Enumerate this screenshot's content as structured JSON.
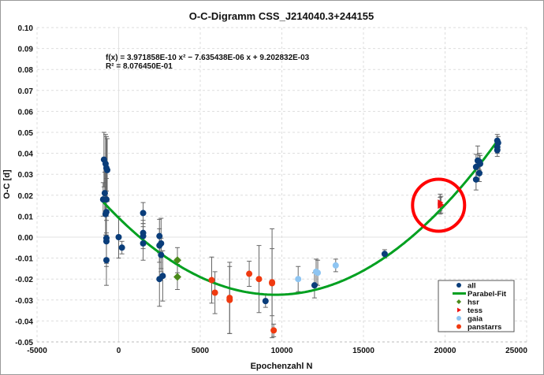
{
  "chart_data": {
    "type": "scatter",
    "title": "O-C-Digramm CSS_J214040.3+244155",
    "xlabel": "Epochenzahl N",
    "ylabel": "O-C [d]",
    "xlim": [
      -5000,
      25000
    ],
    "ylim": [
      -0.05,
      0.1
    ],
    "xticks": [
      "-5000",
      "0",
      "5000",
      "10000",
      "15000",
      "20000",
      "25000"
    ],
    "yticks": [
      "-0.05",
      "-0.04",
      "-0.03",
      "-0.02",
      "-0.01",
      "0.00",
      "0.01",
      "0.02",
      "0.03",
      "0.04",
      "0.05",
      "0.06",
      "0.07",
      "0.08",
      "0.09",
      "0.10"
    ],
    "grid": true,
    "legend_position": "bottom-right",
    "fit": {
      "name": "Parabel-Fit",
      "color": "#00a020",
      "coefficients": [
        3.971858e-10,
        -7.635438e-06,
        0.009202832
      ],
      "equation_text": "f(x)  = 3.971858E-10 x² − 7.635438E-06 x + 9.202832E-03",
      "r2_text": "R² = 8.076450E-01"
    },
    "annotation": {
      "shape": "circle",
      "color": "#ff0000",
      "center": [
        19700,
        0.016
      ]
    },
    "series": [
      {
        "name": "all",
        "color": "#0a3d7a",
        "marker": "circle",
        "points": [
          [
            -900,
            0.037,
            0.013
          ],
          [
            -800,
            0.035,
            0.014
          ],
          [
            -750,
            0.033,
            0.015
          ],
          [
            -700,
            0.032,
            0.015
          ],
          [
            -850,
            0.021,
            0.01
          ],
          [
            -950,
            0.018,
            0.008
          ],
          [
            -750,
            0.018,
            0.01
          ],
          [
            -750,
            0.012,
            0.01
          ],
          [
            -800,
            0.011,
            0.01
          ],
          [
            -750,
            -0.0005,
            0.012
          ],
          [
            -750,
            -0.002,
            0.012
          ],
          [
            -750,
            -0.011,
            0.012
          ],
          [
            0,
            0.0,
            0.01
          ],
          [
            200,
            -0.005,
            0.003
          ],
          [
            1500,
            0.0115,
            0.005
          ],
          [
            1500,
            0.002,
            0.006
          ],
          [
            1500,
            0.0005,
            0.006
          ],
          [
            1500,
            -0.003,
            0.008
          ],
          [
            2500,
            0.0005,
            0.008
          ],
          [
            2500,
            -0.004,
            0.008
          ],
          [
            2600,
            -0.003,
            0.012
          ],
          [
            2600,
            -0.0085,
            0.008
          ],
          [
            2500,
            -0.02,
            0.013
          ],
          [
            2700,
            -0.0185,
            0.012
          ],
          [
            9000,
            -0.0305,
            0.003
          ],
          [
            12000,
            -0.023,
            0.006
          ],
          [
            16300,
            -0.008,
            0.002
          ],
          [
            22000,
            0.0365,
            0.007
          ],
          [
            21900,
            0.0335,
            0.006
          ],
          [
            22100,
            0.036,
            0.004
          ],
          [
            22150,
            0.035,
            0.004
          ],
          [
            21900,
            0.0275,
            0.005
          ],
          [
            22100,
            0.0305,
            0.004
          ],
          [
            23200,
            0.046,
            0.003
          ],
          [
            23250,
            0.045,
            0.003
          ],
          [
            23200,
            0.043,
            0.003
          ],
          [
            23200,
            0.0415,
            0.003
          ]
        ]
      },
      {
        "name": "hsr",
        "color": "#4a8a1a",
        "marker": "diamond",
        "points": [
          [
            3600,
            -0.011,
            0.006
          ],
          [
            3600,
            -0.019,
            0.006
          ]
        ]
      },
      {
        "name": "tess",
        "color": "#ee1111",
        "marker": "triangle",
        "points": [
          [
            19700,
            0.0165,
            0.004
          ],
          [
            19750,
            0.0155,
            0.004
          ],
          [
            19700,
            0.015,
            0.004
          ]
        ]
      },
      {
        "name": "gaia",
        "color": "#8ec5f2",
        "marker": "circle",
        "points": [
          [
            11000,
            -0.02,
            0.006
          ],
          [
            12100,
            -0.0165,
            0.006
          ],
          [
            12200,
            -0.017,
            0.006
          ],
          [
            13300,
            -0.0135,
            0.003
          ]
        ]
      },
      {
        "name": "panstarrs",
        "color": "#f03a10",
        "marker": "circle",
        "points": [
          [
            5700,
            -0.0205,
            0.011
          ],
          [
            5900,
            -0.0265,
            0.01
          ],
          [
            6800,
            -0.029,
            0.017
          ],
          [
            6800,
            -0.03,
            0.016
          ],
          [
            8000,
            -0.0175,
            0.006
          ],
          [
            8600,
            -0.02,
            0.016
          ],
          [
            9400,
            -0.022,
            0.026
          ],
          [
            9400,
            -0.0215,
            0.016
          ],
          [
            9500,
            -0.0445,
            0.003
          ]
        ]
      }
    ]
  }
}
